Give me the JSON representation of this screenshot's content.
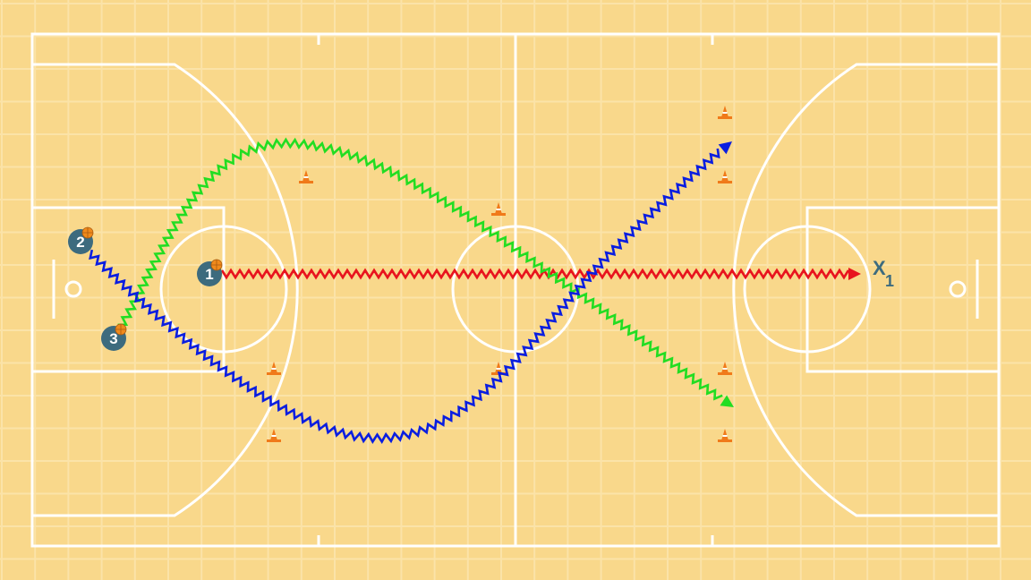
{
  "colors": {
    "court": "#F9D88B",
    "grid": "#FBE3A8",
    "lines": "#FFFFFF",
    "player": "#3D6B7E",
    "ball": "#F08A1C",
    "cone": "#F07A1A",
    "red_path": "#E8141E",
    "green_path": "#22DD22",
    "blue_path": "#0A1EE0"
  },
  "players": [
    {
      "label": "1",
      "has_ball": true
    },
    {
      "label": "2",
      "has_ball": true
    },
    {
      "label": "3",
      "has_ball": true
    }
  ],
  "defender": {
    "label": "X",
    "sub": "1"
  },
  "paths": [
    {
      "player": "1",
      "type": "dribble",
      "color": "red",
      "arrow": true
    },
    {
      "player": "3",
      "type": "dribble",
      "color": "green",
      "arrow": true
    },
    {
      "player": "2",
      "type": "dribble",
      "color": "blue",
      "arrow": true
    }
  ],
  "icons": {
    "cone": "cone-icon",
    "ball": "basketball-icon"
  }
}
